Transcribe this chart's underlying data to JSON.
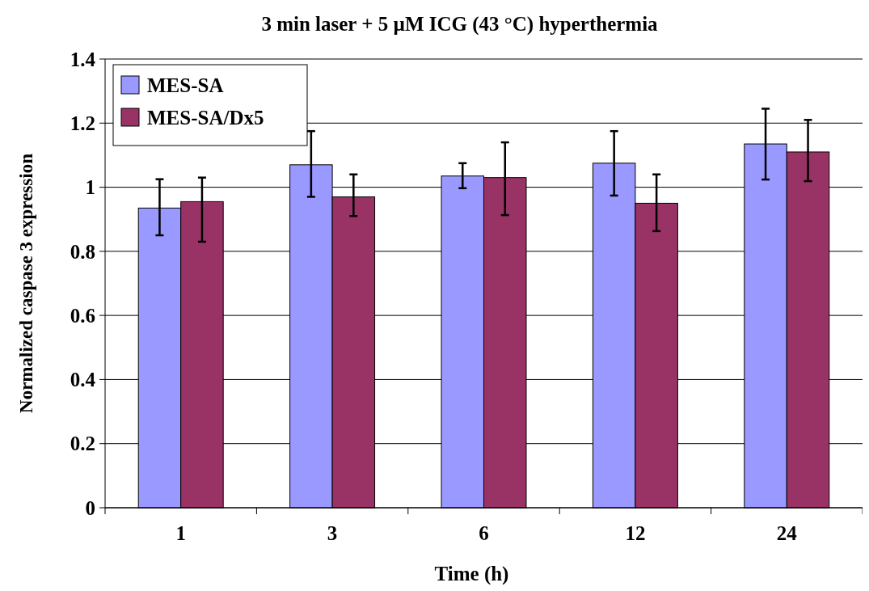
{
  "chart_data": {
    "type": "bar",
    "title": "3 min laser + 5 µM ICG (43 °C) hyperthermia",
    "xlabel": "Time (h)",
    "ylabel": "Normalized caspase 3 expression",
    "categories": [
      "1",
      "3",
      "6",
      "12",
      "24"
    ],
    "series": [
      {
        "name": "MES-SA",
        "color": "#9999ff",
        "values": [
          0.935,
          1.07,
          1.035,
          1.075,
          1.135
        ],
        "errors": [
          [
            0.85,
            1.025
          ],
          [
            0.97,
            1.175
          ],
          [
            0.997,
            1.075
          ],
          [
            0.974,
            1.175
          ],
          [
            1.024,
            1.245
          ]
        ]
      },
      {
        "name": "MES-SA/Dx5",
        "color": "#993366",
        "values": [
          0.955,
          0.97,
          1.03,
          0.95,
          1.11
        ],
        "errors": [
          [
            0.83,
            1.03
          ],
          [
            0.91,
            1.04
          ],
          [
            0.913,
            1.14
          ],
          [
            0.863,
            1.04
          ],
          [
            1.019,
            1.21
          ]
        ]
      }
    ],
    "ylim": [
      0,
      1.4
    ],
    "yticks": [
      0,
      0.2,
      0.4,
      0.6,
      0.8,
      1,
      1.2,
      1.4
    ],
    "grid": "y",
    "legend": "top left"
  }
}
